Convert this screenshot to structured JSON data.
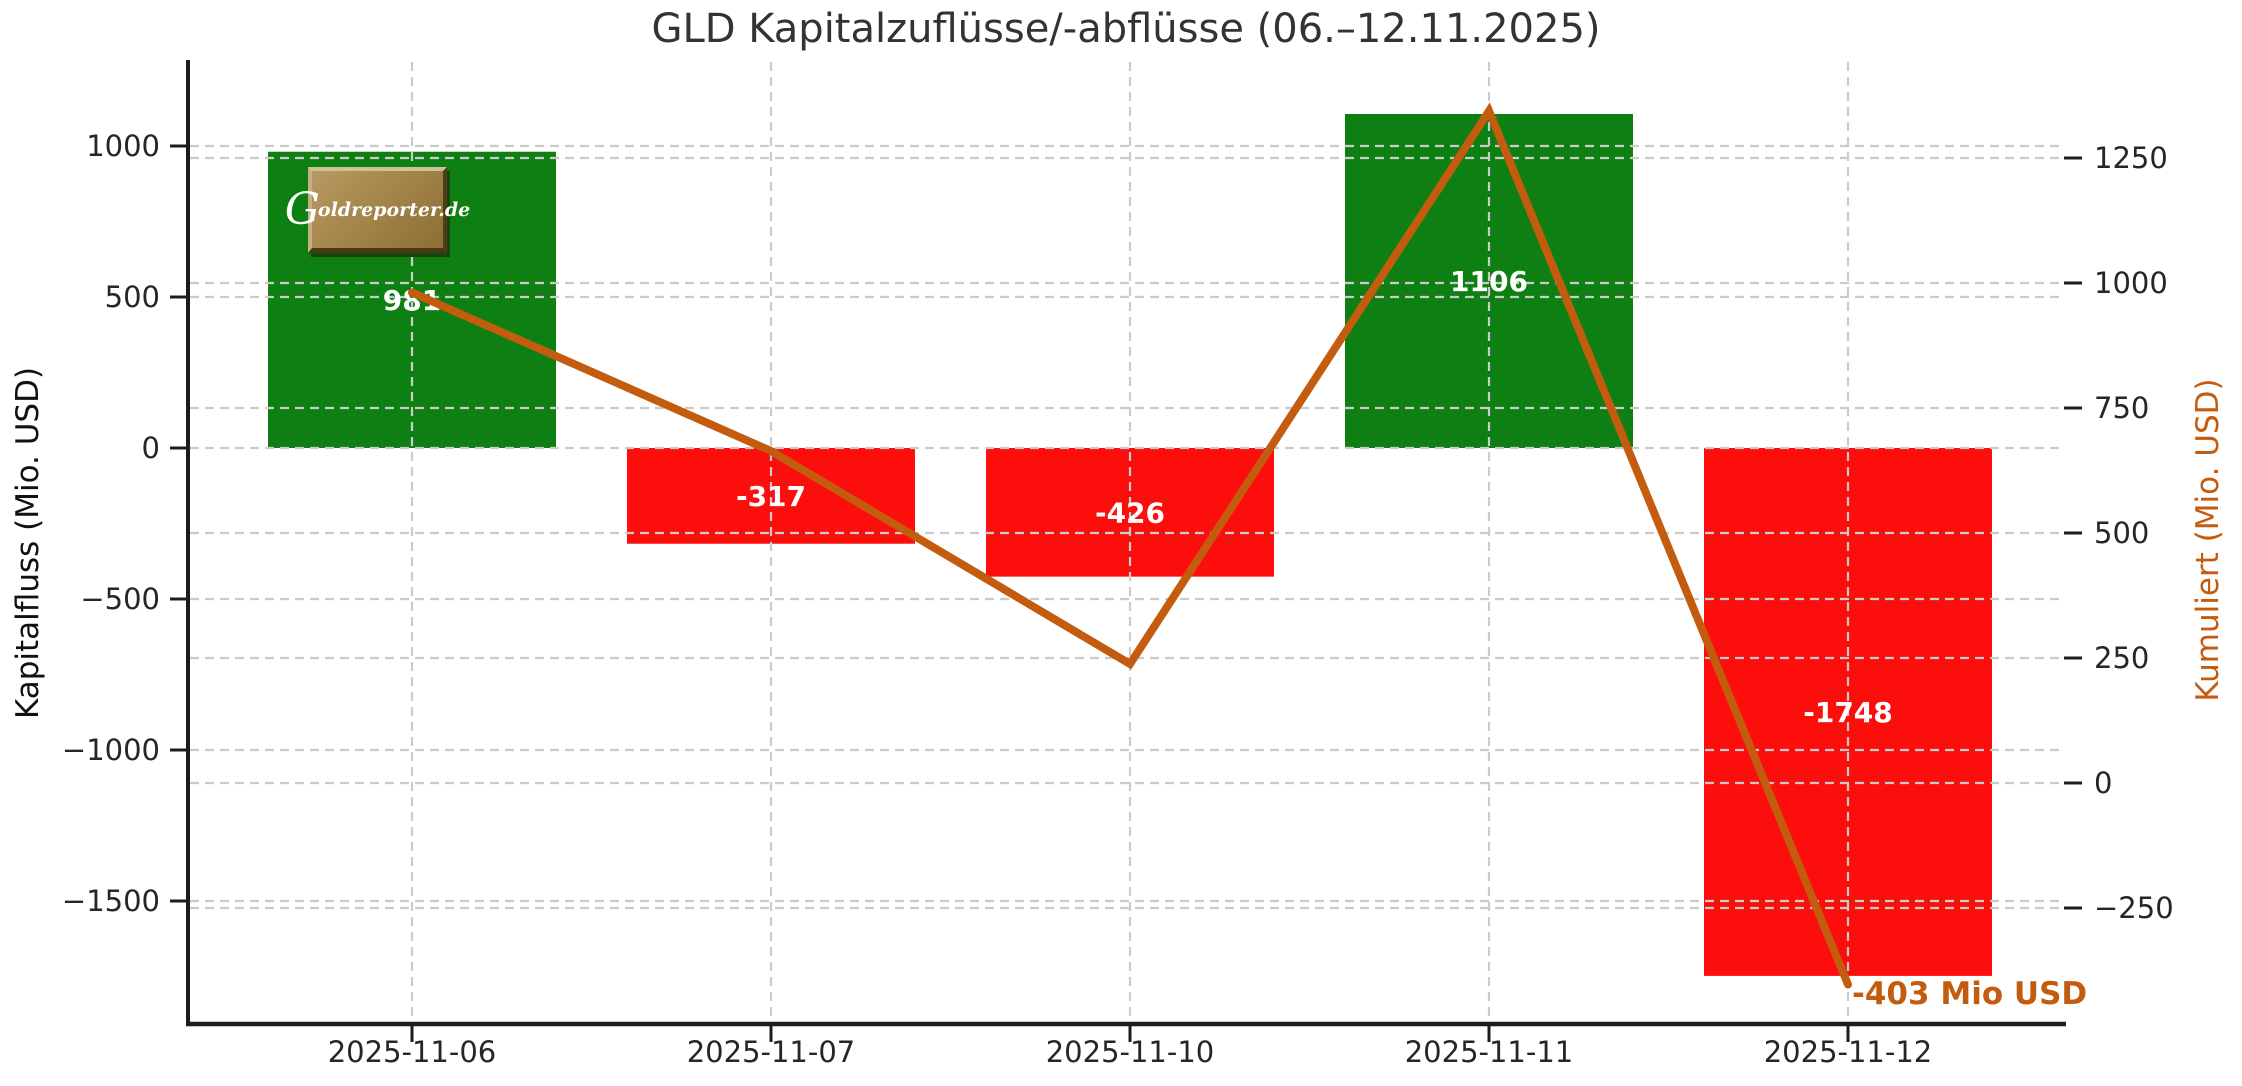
{
  "title": "GLD Kapitalzuflüsse/-abflüsse (06.–12.11.2025)",
  "left_axis": {
    "label": "Kapitalfluss (Mio. USD)",
    "tick_values": [
      1000,
      500,
      0,
      -500,
      -1000,
      -1500
    ],
    "tick_labels": [
      "1000",
      "500",
      "0",
      "−500",
      "−1000",
      "−1500"
    ]
  },
  "right_axis": {
    "label": "Kumuliert (Mio. USD)",
    "tick_values": [
      1250,
      1000,
      750,
      500,
      250,
      0,
      -250
    ],
    "tick_labels": [
      "1250",
      "1000",
      "750",
      "500",
      "250",
      "0",
      "−250"
    ]
  },
  "annotation": "-403 Mio USD",
  "logo": {
    "g": "G",
    "rest": "oldreporter.de"
  },
  "colors": {
    "bar_positive": "#0e7f12",
    "bar_negative": "#fb0e0c",
    "line": "#c35c0e",
    "grid": "#cbcbcb",
    "spine": "#1c1c1c"
  },
  "chart_data": {
    "type": "bar",
    "categories": [
      "2025-11-06",
      "2025-11-07",
      "2025-11-10",
      "2025-11-11",
      "2025-11-12"
    ],
    "series": [
      {
        "name": "Kapitalfluss (Mio. USD)",
        "type": "bar",
        "values": [
          981,
          -317,
          -426,
          1106,
          -1748
        ],
        "labels": [
          "981",
          "-317",
          "-426",
          "1106",
          "-1748"
        ]
      },
      {
        "name": "Kumuliert (Mio. USD)",
        "type": "line",
        "values": [
          981,
          664,
          238,
          1344,
          -403
        ]
      }
    ],
    "title": "GLD Kapitalzuflüsse/-abflüsse (06.–12.11.2025)",
    "xlabel": "",
    "ylabel_left": "Kapitalfluss (Mio. USD)",
    "ylabel_right": "Kumuliert (Mio. USD)",
    "left_ylim": [
      -1907,
      1278
    ],
    "right_ylim": [
      -482,
      1442
    ],
    "grid": true,
    "legend": "none",
    "final_annotation": "-403 Mio USD"
  }
}
